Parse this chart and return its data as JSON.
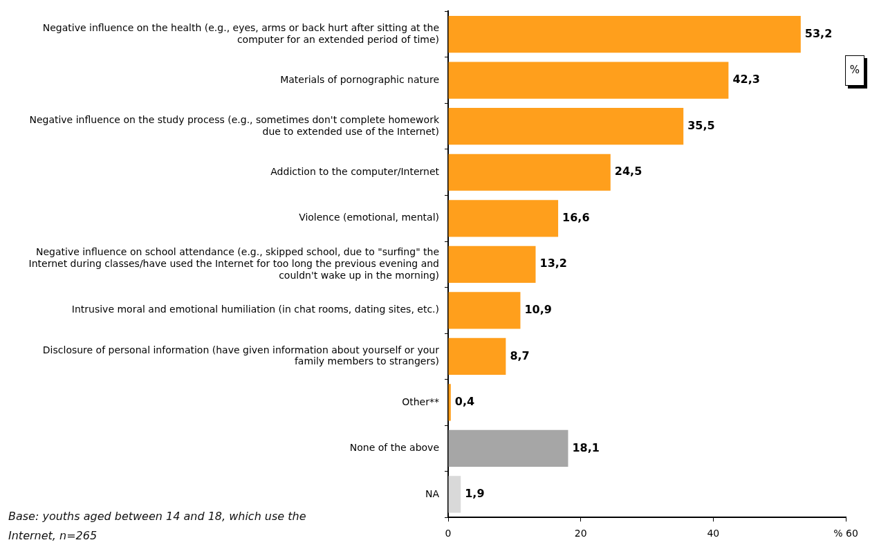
{
  "chart_data": {
    "type": "bar",
    "orientation": "horizontal",
    "categories": [
      "Negative influence on the health (e.g., eyes, arms or back hurt after sitting at the computer for an extended period of time)",
      "Materials of pornographic nature",
      "Negative influence on the study process (e.g., sometimes don't complete homework due to extended use of the Internet)",
      "Addiction to the computer/Internet",
      "Violence (emotional, mental)",
      "Negative influence on school attendance (e.g., skipped school, due to \"surfing\" the Internet during classes/have used the Internet for too long the previous evening and couldn't wake up in the morning)",
      "Intrusive moral and emotional humiliation (in chat rooms, dating sites, etc.)",
      "Disclosure of personal information (have given information about yourself or your family members to strangers)",
      "Other**",
      "None of the above",
      "NA"
    ],
    "values": [
      53.2,
      42.3,
      35.5,
      24.5,
      16.6,
      13.2,
      10.9,
      8.7,
      0.4,
      18.1,
      1.9
    ],
    "colors": [
      "#ff9f1c",
      "#ff9f1c",
      "#ff9f1c",
      "#ff9f1c",
      "#ff9f1c",
      "#ff9f1c",
      "#ff9f1c",
      "#ff9f1c",
      "#ff9f1c",
      "#a6a6a6",
      "#d9d9d9"
    ],
    "value_labels": [
      "53,2",
      "42,3",
      "35,5",
      "24,5",
      "16,6",
      "13,2",
      "10,9",
      "8,7",
      "0,4",
      "18,1",
      "1,9"
    ],
    "xlim": [
      0,
      60
    ],
    "xticks": [
      0,
      20,
      40,
      {
        "value": 60,
        "label": "% 60"
      }
    ],
    "grid": false,
    "legend": false,
    "annotations": [
      "%",
      "Base: youths aged between 14 and 18, which use the Internet, n=265"
    ]
  }
}
